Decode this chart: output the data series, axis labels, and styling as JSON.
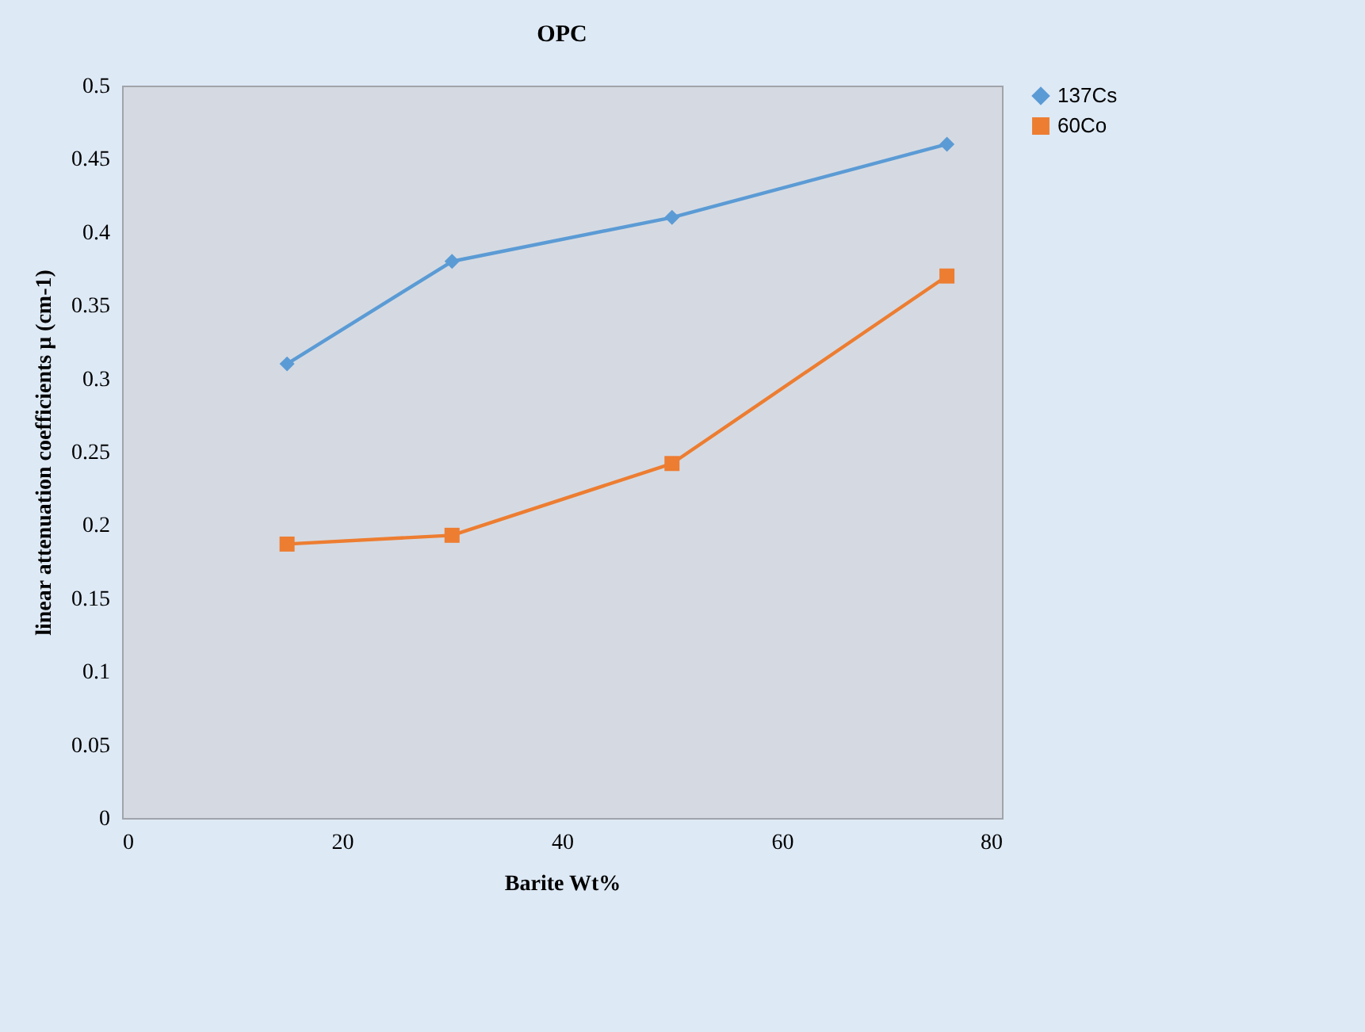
{
  "chart_data": {
    "type": "line",
    "title": "OPC",
    "xlabel": "Barite Wt%",
    "ylabel": "linear attenuation coefficients μ (cm-1)",
    "x": [
      15,
      30,
      50,
      75
    ],
    "series": [
      {
        "name": "137Cs",
        "color": "#5b9bd5",
        "marker": "diamond",
        "values": [
          0.31,
          0.38,
          0.41,
          0.46
        ]
      },
      {
        "name": "60Co",
        "color": "#ed7d31",
        "marker": "square",
        "values": [
          0.187,
          0.193,
          0.242,
          0.37
        ]
      }
    ],
    "xlim": [
      0,
      80
    ],
    "xticks": [
      0,
      20,
      40,
      60,
      80
    ],
    "ylim": [
      0,
      0.5
    ],
    "yticks": [
      0,
      0.05,
      0.1,
      0.15,
      0.2,
      0.25,
      0.3,
      0.35,
      0.4,
      0.45,
      0.5
    ],
    "grid": false,
    "legend": "right",
    "line_style": "solid"
  }
}
